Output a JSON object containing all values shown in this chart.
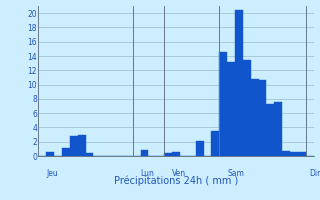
{
  "title": "",
  "xlabel": "Précipitations 24h ( mm )",
  "ylabel": "",
  "background_color": "#cceeff",
  "bar_color": "#1155cc",
  "grid_color": "#99bbcc",
  "text_color": "#2255bb",
  "ylim": [
    0,
    21
  ],
  "yticks": [
    0,
    2,
    4,
    6,
    8,
    10,
    12,
    14,
    16,
    18,
    20
  ],
  "values": [
    0,
    0.6,
    0,
    1.1,
    2.8,
    2.9,
    0.4,
    0,
    0,
    0,
    0,
    0,
    0,
    0.8,
    0,
    0,
    0.4,
    0.5,
    0,
    0,
    2.1,
    0,
    3.5,
    14.5,
    13.2,
    20.5,
    13.5,
    10.8,
    10.7,
    7.3,
    7.5,
    0.7,
    0.5,
    0.5,
    0
  ],
  "day_labels": [
    "Jeu",
    "Lun",
    "Ven",
    "Sam",
    "Dim"
  ],
  "day_positions": [
    0.5,
    12.5,
    16.5,
    23.5,
    34.0
  ],
  "vline_positions": [
    12,
    16,
    23,
    34
  ],
  "figsize": [
    3.2,
    2.0
  ],
  "dpi": 100
}
